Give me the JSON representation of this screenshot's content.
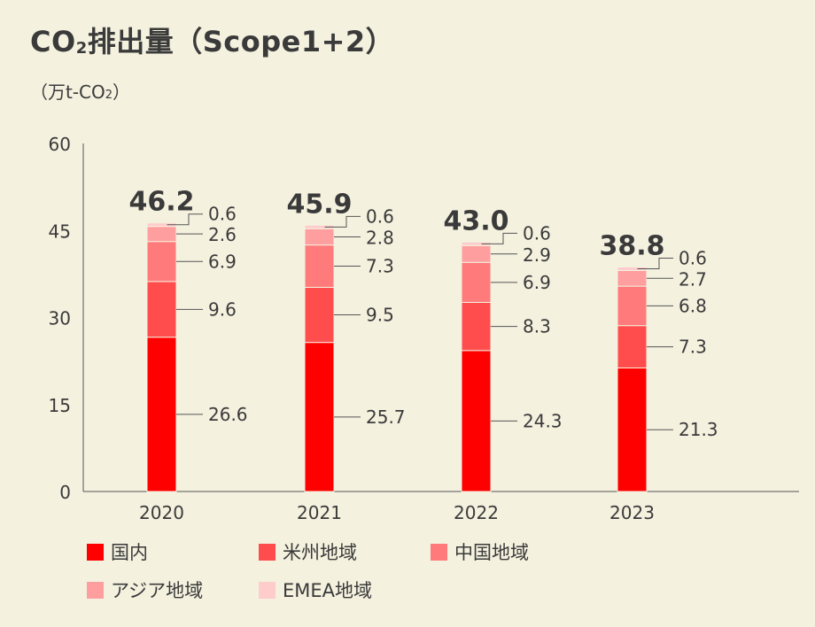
{
  "title": {
    "prefix": "CO",
    "sub": "2",
    "suffix": "排出量（Scope1+2）"
  },
  "unit": {
    "prefix": "（万t-CO",
    "sub": "2",
    "suffix": "）"
  },
  "chart_data": {
    "type": "bar",
    "stacked": true,
    "categories": [
      "2020",
      "2021",
      "2022",
      "2023"
    ],
    "totals": [
      "46.2",
      "45.9",
      "43.0",
      "38.8"
    ],
    "series": [
      {
        "name": "国内",
        "color": "#ff0000",
        "values": [
          26.6,
          25.7,
          24.3,
          21.3
        ],
        "labels": [
          "26.6",
          "25.7",
          "24.3",
          "21.3"
        ]
      },
      {
        "name": "米州地域",
        "color": "#ff4d4d",
        "values": [
          9.6,
          9.5,
          8.3,
          7.3
        ],
        "labels": [
          "9.6",
          "9.5",
          "8.3",
          "7.3"
        ]
      },
      {
        "name": "中国地域",
        "color": "#ff7a7a",
        "values": [
          6.9,
          7.3,
          6.9,
          6.8
        ],
        "labels": [
          "6.9",
          "7.3",
          "6.9",
          "6.8"
        ]
      },
      {
        "name": "アジア地域",
        "color": "#ff9e9e",
        "values": [
          2.6,
          2.8,
          2.9,
          2.7
        ],
        "labels": [
          "2.6",
          "2.8",
          "2.9",
          "2.7"
        ]
      },
      {
        "name": "EMEA地域",
        "color": "#ffcccc",
        "values": [
          0.6,
          0.6,
          0.6,
          0.6
        ],
        "labels": [
          "0.6",
          "0.6",
          "0.6",
          "0.6"
        ]
      }
    ],
    "yticks": [
      "0",
      "15",
      "30",
      "45",
      "60"
    ],
    "ylim": [
      0,
      60
    ],
    "legend_position": "bottom"
  }
}
